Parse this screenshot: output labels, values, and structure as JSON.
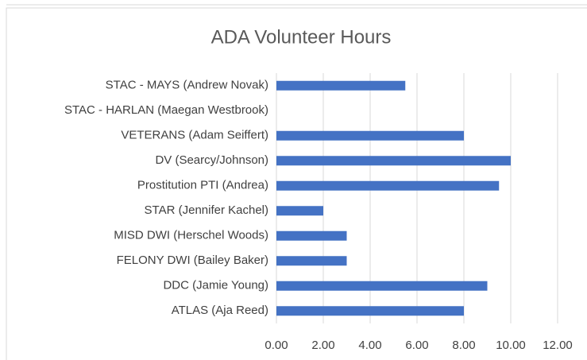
{
  "chart_data": {
    "type": "barh",
    "title": "ADA Volunteer Hours",
    "categories": [
      "STAC - MAYS (Andrew Novak)",
      "STAC - HARLAN (Maegan Westbrook)",
      "VETERANS (Adam Seiffert)",
      "DV (Searcy/Johnson)",
      "Prostitution PTI (Andrea)",
      "STAR (Jennifer Kachel)",
      "MISD DWI (Herschel Woods)",
      "FELONY DWI (Bailey Baker)",
      "DDC (Jamie Young)",
      "ATLAS (Aja Reed)"
    ],
    "values": [
      5.5,
      0,
      8,
      10,
      9.5,
      2,
      3,
      3,
      9,
      8
    ],
    "color": "#4472c4",
    "xlim": [
      0,
      12
    ],
    "xticks": [
      {
        "value": 0,
        "label": "0.00"
      },
      {
        "value": 2,
        "label": "2.00"
      },
      {
        "value": 4,
        "label": "4.00"
      },
      {
        "value": 6,
        "label": "6.00"
      },
      {
        "value": 8,
        "label": "8.00"
      },
      {
        "value": 10,
        "label": "10.00"
      },
      {
        "value": 12,
        "label": "12.00"
      }
    ],
    "grid": true
  }
}
